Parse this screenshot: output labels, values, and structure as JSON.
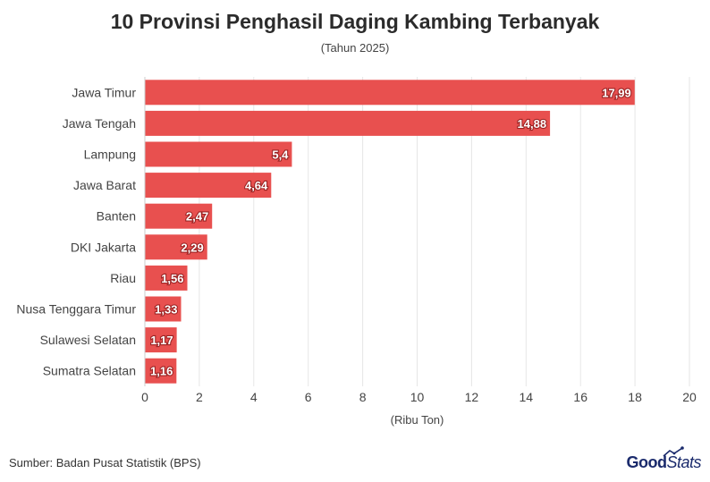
{
  "chart_data": {
    "type": "bar",
    "orientation": "horizontal",
    "title": "10 Provinsi Penghasil Daging Kambing Terbanyak",
    "subtitle": "(Tahun 2025)",
    "xlabel": "(Ribu Ton)",
    "ylabel": "",
    "xlim": [
      0,
      20
    ],
    "x_ticks": [
      "0",
      "2",
      "4",
      "6",
      "8",
      "10",
      "12",
      "14",
      "16",
      "18",
      "20"
    ],
    "grid": true,
    "categories": [
      "Jawa Timur",
      "Jawa Tengah",
      "Lampung",
      "Jawa Barat",
      "Banten",
      "DKI Jakarta",
      "Riau",
      "Nusa Tenggara Timur",
      "Sulawesi Selatan",
      "Sumatra Selatan"
    ],
    "values": [
      17.99,
      14.88,
      5.4,
      4.64,
      2.47,
      2.29,
      1.56,
      1.33,
      1.17,
      1.16
    ],
    "value_labels": [
      "17,99",
      "14,88",
      "5,4",
      "4,64",
      "2,47",
      "2,29",
      "1,56",
      "1,33",
      "1,17",
      "1,16"
    ],
    "bar_color": "#e8504f"
  },
  "footer": {
    "source": "Sumber: Badan Pusat Statistik (BPS)",
    "logo_good": "Good",
    "logo_stats": "Stats"
  }
}
